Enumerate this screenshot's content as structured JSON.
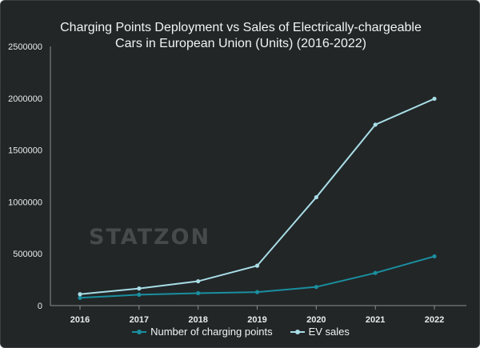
{
  "chart_data": {
    "type": "line",
    "title_line1": "Charging Points Deployment vs Sales of Electrically-chargeable",
    "title_line2": "Cars in European Union (Units) (2016-2022)",
    "categories": [
      "2016",
      "2017",
      "2018",
      "2019",
      "2020",
      "2021",
      "2022"
    ],
    "y_ticks": [
      "0",
      "500000",
      "1000000",
      "1500000",
      "2000000",
      "2500000"
    ],
    "ylim": [
      0,
      2500000
    ],
    "grid": false,
    "legend_position": "bottom",
    "series": [
      {
        "name": "Number of charging points",
        "color": "#1a8fa0",
        "values": [
          75000,
          105000,
          120000,
          130000,
          180000,
          315000,
          475000
        ]
      },
      {
        "name": "EV sales",
        "color": "#a8dde6",
        "values": [
          110000,
          165000,
          235000,
          385000,
          1045000,
          1745000,
          1995000
        ]
      }
    ]
  },
  "watermark": "STATZON"
}
